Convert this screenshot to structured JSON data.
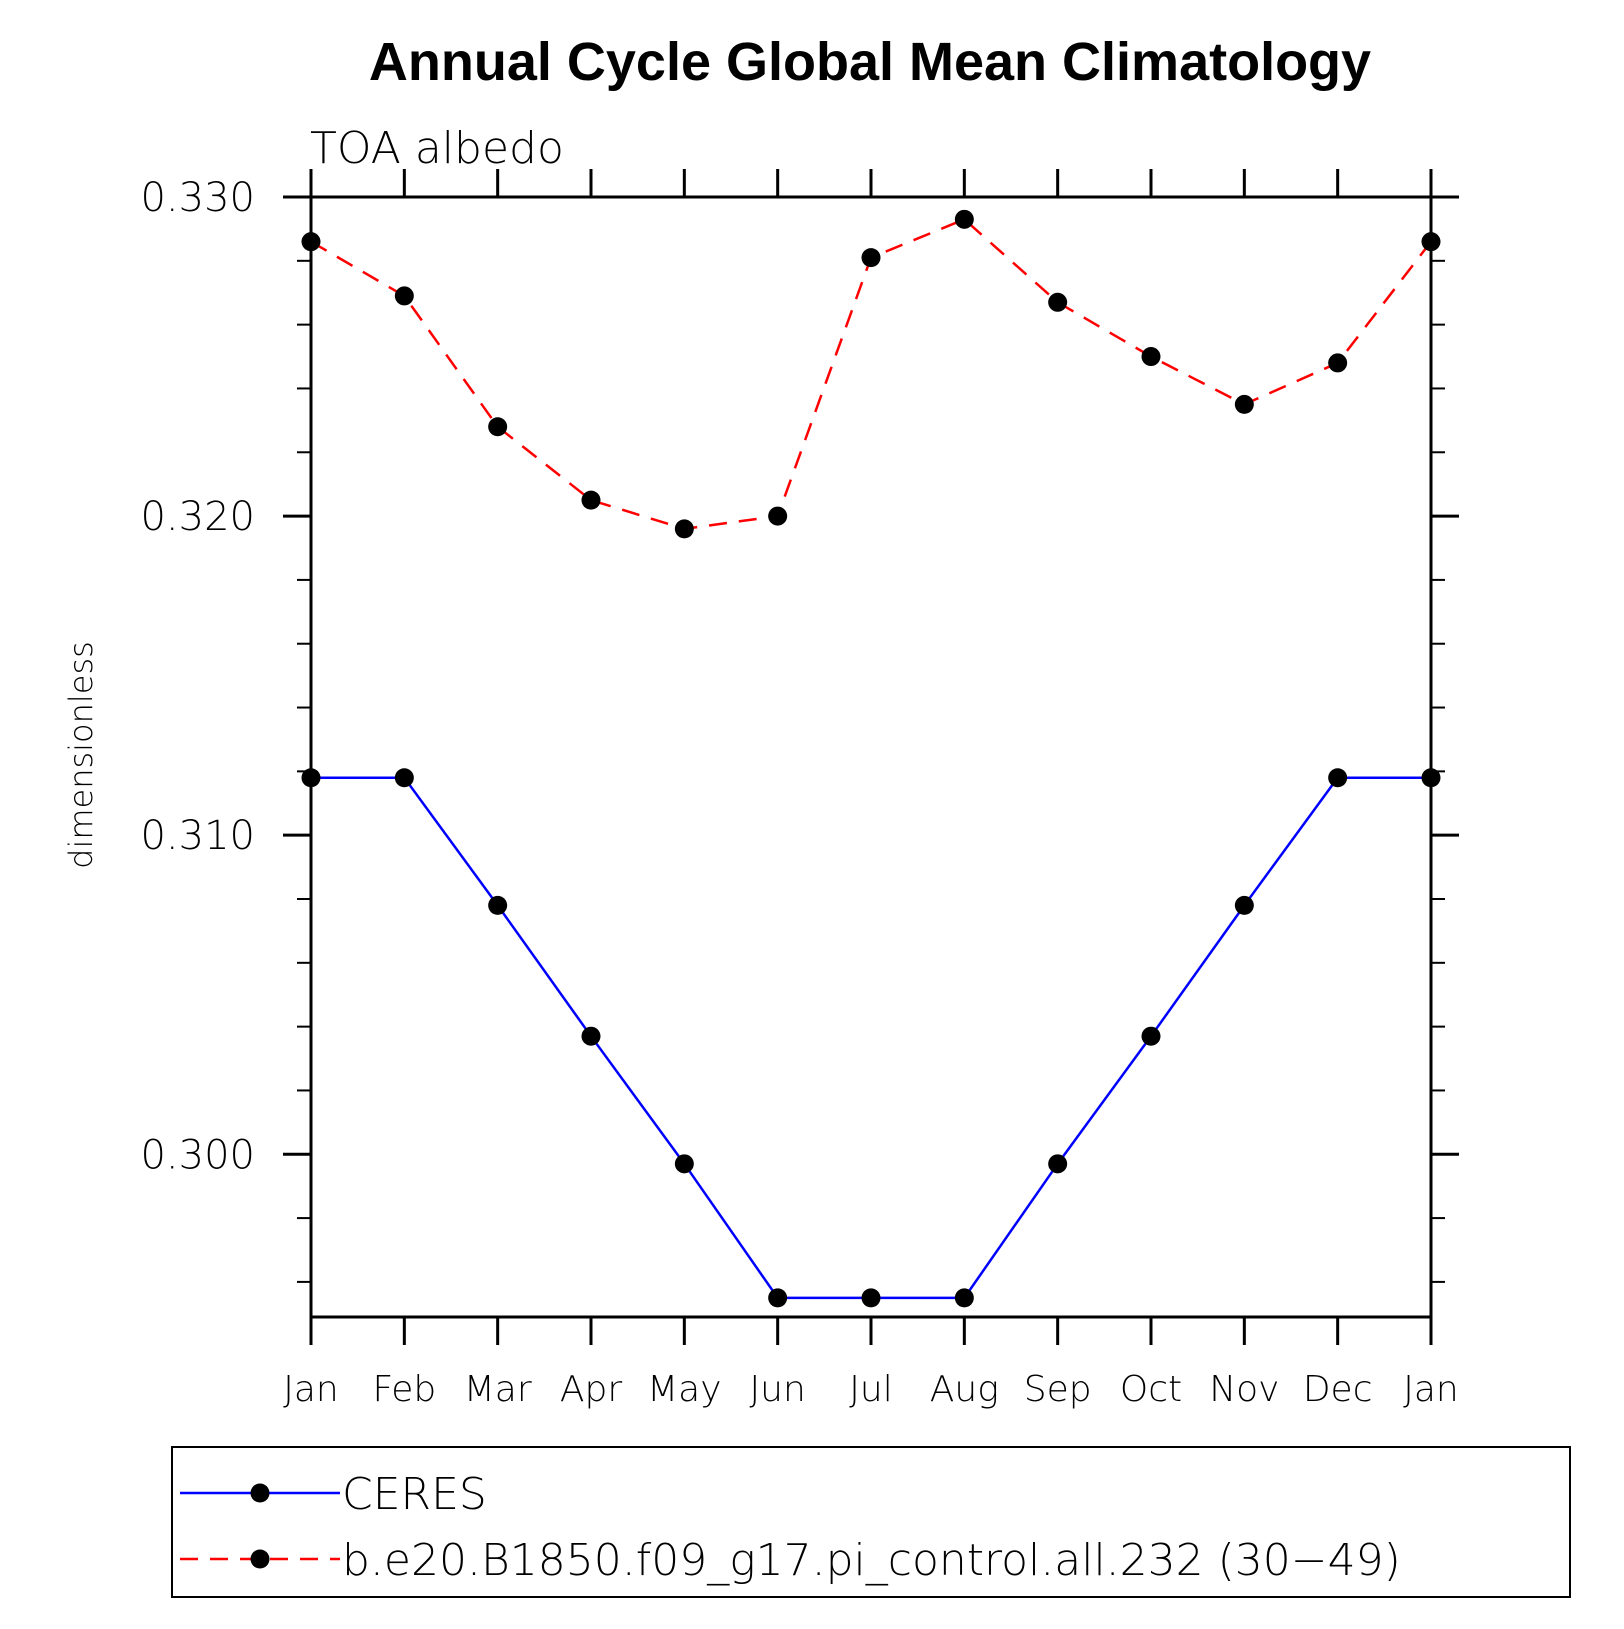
{
  "chart_data": {
    "type": "line",
    "title": "Annual Cycle Global Mean Climatology",
    "subtitle": "TOA albedo",
    "xlabel": "",
    "ylabel": "dimensionless",
    "categories": [
      "Jan",
      "Feb",
      "Mar",
      "Apr",
      "May",
      "Jun",
      "Jul",
      "Aug",
      "Sep",
      "Oct",
      "Nov",
      "Dec",
      "Jan"
    ],
    "ylim": [
      0.2949,
      0.33
    ],
    "yticks": [
      "0.330",
      "0.320",
      "0.310",
      "0.300"
    ],
    "ytick_values": [
      0.33,
      0.32,
      0.31,
      0.3
    ],
    "grid": false,
    "legend_position": "bottom",
    "series": [
      {
        "name": "CERES",
        "color": "#0000ff",
        "style": "solid",
        "marker": "filled-circle",
        "values": [
          0.3118,
          0.3118,
          0.3078,
          0.3037,
          0.2997,
          0.2955,
          0.2955,
          0.2955,
          0.2997,
          0.3037,
          0.3078,
          0.3118,
          0.3118
        ]
      },
      {
        "name": "b.e20.B1850.f09_g17.pi_control.all.232 (30−49)",
        "color": "#ff0000",
        "style": "dashed",
        "marker": "filled-circle",
        "values": [
          0.3286,
          0.3269,
          0.3228,
          0.3205,
          0.3196,
          0.32,
          0.3281,
          0.3293,
          0.3267,
          0.325,
          0.3235,
          0.3248,
          0.3286
        ]
      }
    ]
  }
}
